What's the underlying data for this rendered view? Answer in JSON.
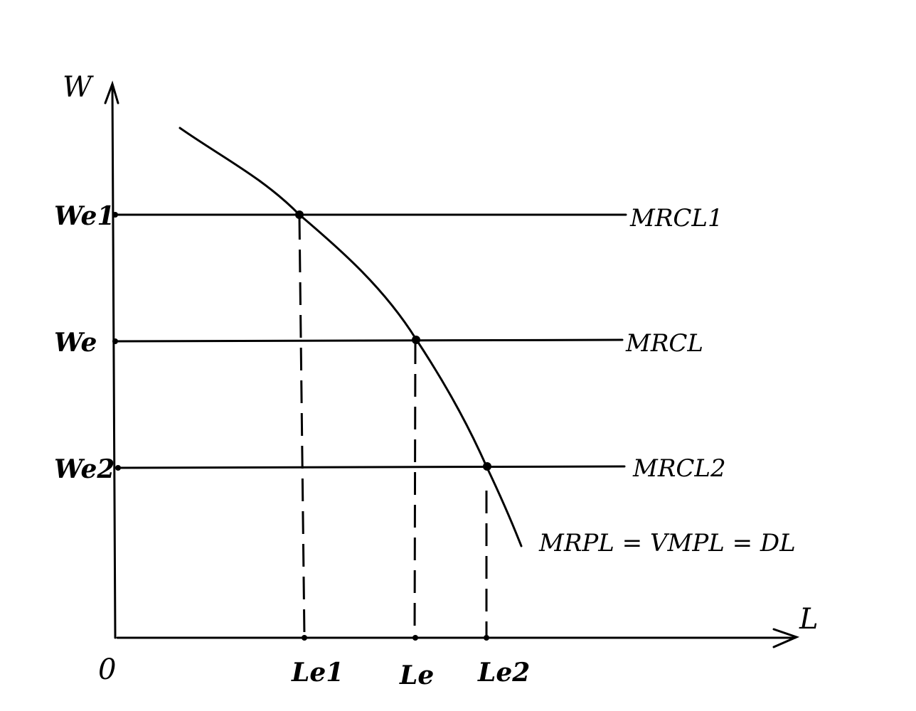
{
  "diagram": {
    "axes": {
      "y_label": "W",
      "x_label": "L",
      "origin_label": "0"
    },
    "y_ticks": [
      "We1",
      "We",
      "We2"
    ],
    "x_ticks": [
      "Le1",
      "Le",
      "Le2"
    ],
    "supply_lines": [
      "MRCL1",
      "MRCL",
      "MRCL2"
    ],
    "demand_curve_label": "MRPL = VMPL = DL",
    "colors": {
      "ink": "#000000",
      "background": "#ffffff"
    }
  }
}
